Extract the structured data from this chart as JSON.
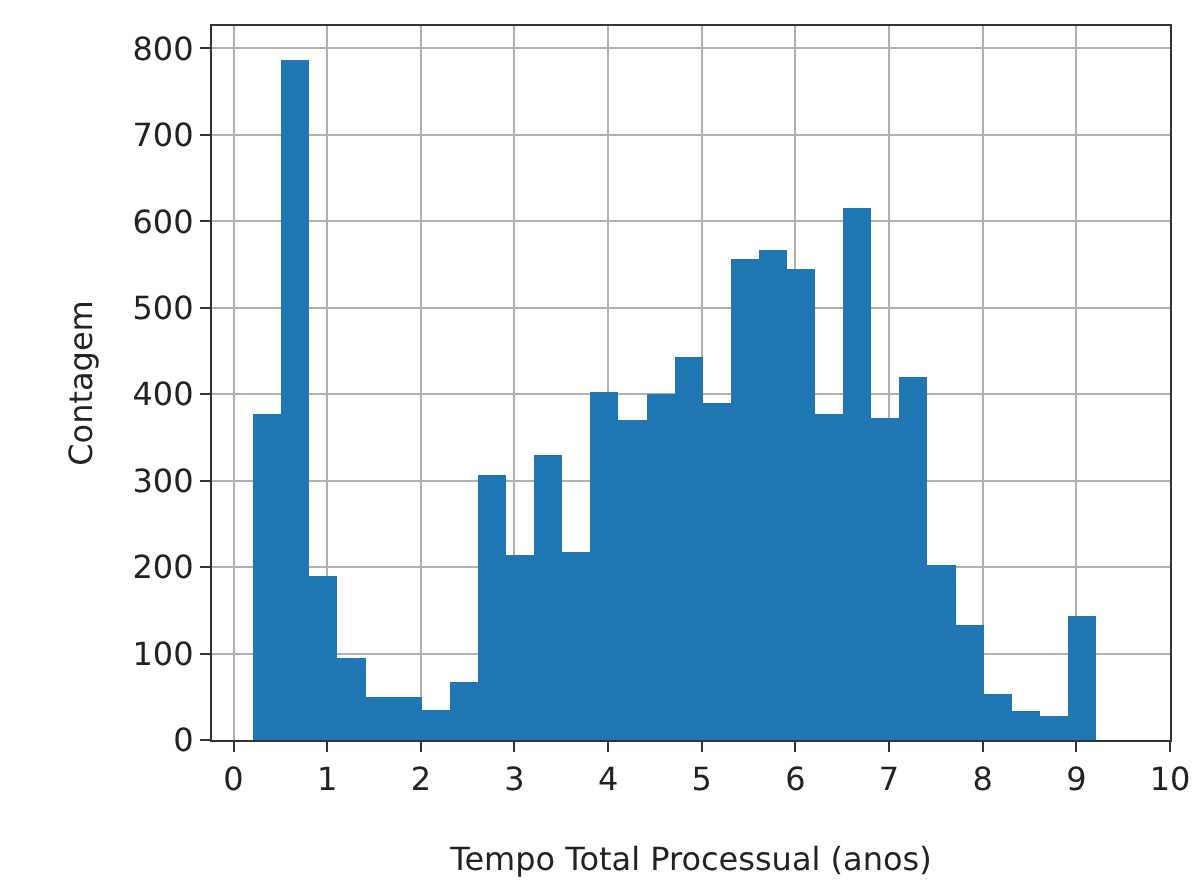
{
  "chart_data": {
    "type": "histogram",
    "xlabel": "Tempo Total Processual (anos)",
    "ylabel": "Contagem",
    "bins": [
      0.21,
      0.51,
      0.81,
      1.11,
      1.41,
      1.71,
      2.01,
      2.31,
      2.61,
      2.91,
      3.21,
      3.51,
      3.81,
      4.11,
      4.41,
      4.71,
      5.01,
      5.31,
      5.61,
      5.91,
      6.21,
      6.51,
      6.81,
      7.11,
      7.41,
      7.71,
      8.01,
      8.31,
      8.61,
      8.91,
      9.21
    ],
    "values": [
      377,
      787,
      190,
      95,
      50,
      50,
      35,
      67,
      307,
      214,
      330,
      218,
      403,
      370,
      400,
      443,
      390,
      557,
      567,
      545,
      377,
      615,
      372,
      420,
      202,
      133,
      53,
      33,
      28,
      143
    ],
    "color": "#1f77b4",
    "xlim": [
      -0.23,
      10
    ],
    "xticks": [
      0,
      1,
      2,
      3,
      4,
      5,
      6,
      7,
      8,
      9,
      10
    ],
    "ylim": [
      0,
      826
    ],
    "yticks": [
      0,
      100,
      200,
      300,
      400,
      500,
      600,
      700,
      800
    ],
    "grid": true
  }
}
